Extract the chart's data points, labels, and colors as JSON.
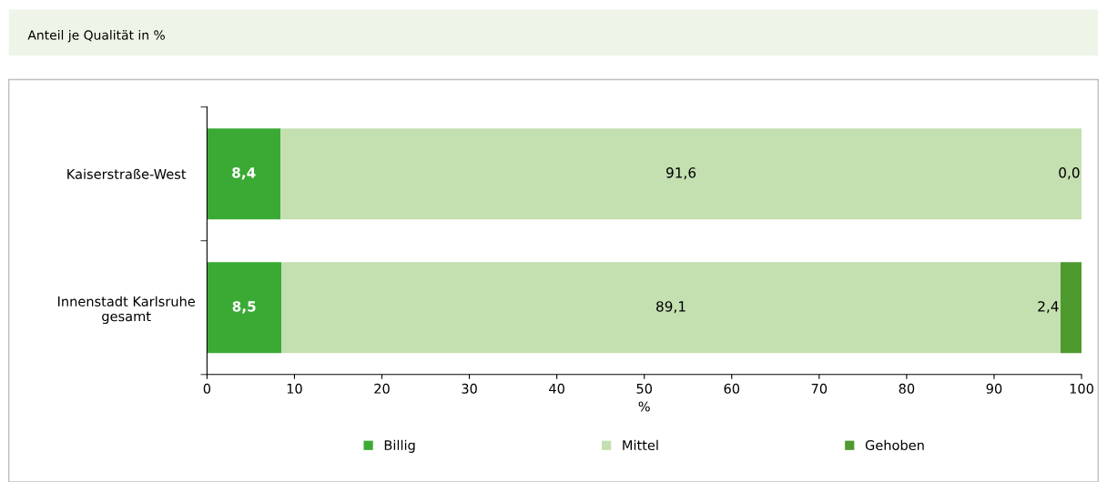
{
  "chart_data": {
    "type": "bar",
    "orientation": "horizontal",
    "stacked": true,
    "title": "Anteil je Qualität in %",
    "xlabel": "%",
    "categories": [
      "Kaiserstraße-West",
      "Innenstadt Karlsruhe\ngesamt"
    ],
    "series": [
      {
        "name": "Billig",
        "color": "#3aaa35",
        "values": [
          8.4,
          8.5
        ],
        "value_labels": [
          "8,4",
          "8,5"
        ]
      },
      {
        "name": "Mittel",
        "color": "#c4dfb0",
        "values": [
          91.6,
          89.1
        ],
        "value_labels": [
          "91,6",
          "89,1"
        ]
      },
      {
        "name": "Gehoben",
        "color": "#4e9a2f",
        "values": [
          0.0,
          2.4
        ],
        "value_labels": [
          "0,0",
          "2,4"
        ]
      }
    ],
    "xlim": [
      0,
      100
    ],
    "xticks": [
      0,
      10,
      20,
      30,
      40,
      50,
      60,
      70,
      80,
      90,
      100
    ],
    "grid": false,
    "legend": "bottom"
  }
}
